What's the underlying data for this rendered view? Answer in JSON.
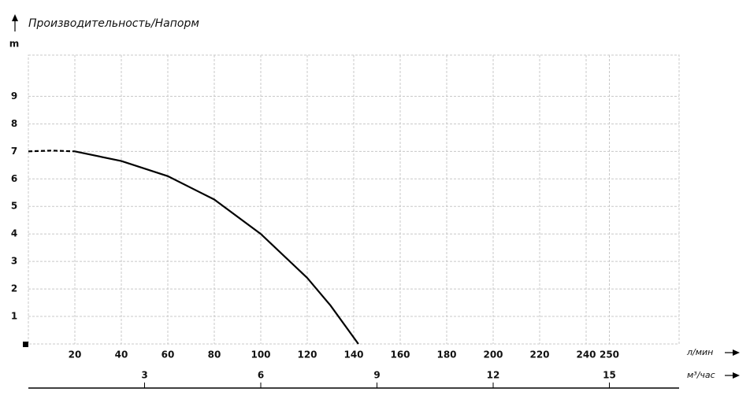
{
  "chart_data": {
    "type": "line",
    "title": "Производительность/Напорм",
    "y_label": "m",
    "x_label": "л/мин",
    "x2_label": "м³/час",
    "x": [
      0,
      10,
      20,
      40,
      60,
      80,
      100,
      120,
      130,
      142
    ],
    "series": [
      {
        "color": "#000000",
        "dashed": true,
        "values": [
          7,
          7.03,
          7,
          null,
          null,
          null,
          null,
          null,
          null,
          null
        ]
      },
      {
        "color": "#000000",
        "dashed": false,
        "values": [
          null,
          null,
          7,
          6.65,
          6.1,
          5.25,
          4.0,
          2.4,
          1.4,
          0
        ]
      }
    ],
    "xlim": [
      0,
      280
    ],
    "xticks": [
      20,
      40,
      60,
      80,
      100,
      120,
      140,
      160,
      180,
      200,
      220,
      240,
      250
    ],
    "x2lim": [
      0,
      16.8
    ],
    "x2ticks": [
      3,
      6,
      9,
      12,
      15
    ],
    "ylim": [
      0,
      10.5
    ],
    "yticks": [
      1,
      2,
      3,
      4,
      5,
      6,
      7,
      8,
      9
    ],
    "grid": true
  }
}
